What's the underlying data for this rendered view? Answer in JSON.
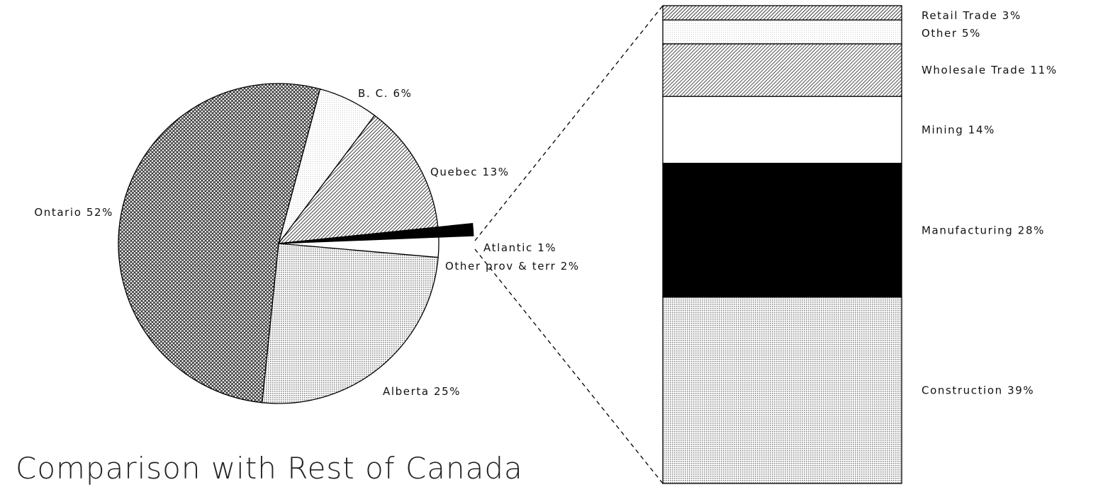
{
  "chart_data": [
    {
      "type": "pie",
      "title": "Comparison with Rest of Canada",
      "categories": [
        "B. C.",
        "Quebec",
        "Atlantic",
        "Other prov & terr",
        "Alberta",
        "Ontario"
      ],
      "values": [
        6,
        13,
        1,
        2,
        25,
        52
      ],
      "value_labels": [
        "6%",
        "13%",
        "1%",
        "2%",
        "25%",
        "52%"
      ],
      "colors": [
        "#c8c8c8",
        "#444444",
        "#000000",
        "#ffffff",
        "#888888",
        "#333333"
      ],
      "exploded": "Atlantic"
    },
    {
      "type": "stacked_bar",
      "categories": [
        "Retail Trade",
        "Other",
        "Wholesale Trade",
        "Mining",
        "Manufacturing",
        "Construction"
      ],
      "values": [
        3,
        5,
        11,
        14,
        28,
        39
      ],
      "value_labels": [
        "3%",
        "5%",
        "11%",
        "14%",
        "28%",
        "39%"
      ],
      "colors": [
        "#444444",
        "#c8c8c8",
        "#555555",
        "#ffffff",
        "#000000",
        "#888888"
      ]
    }
  ]
}
